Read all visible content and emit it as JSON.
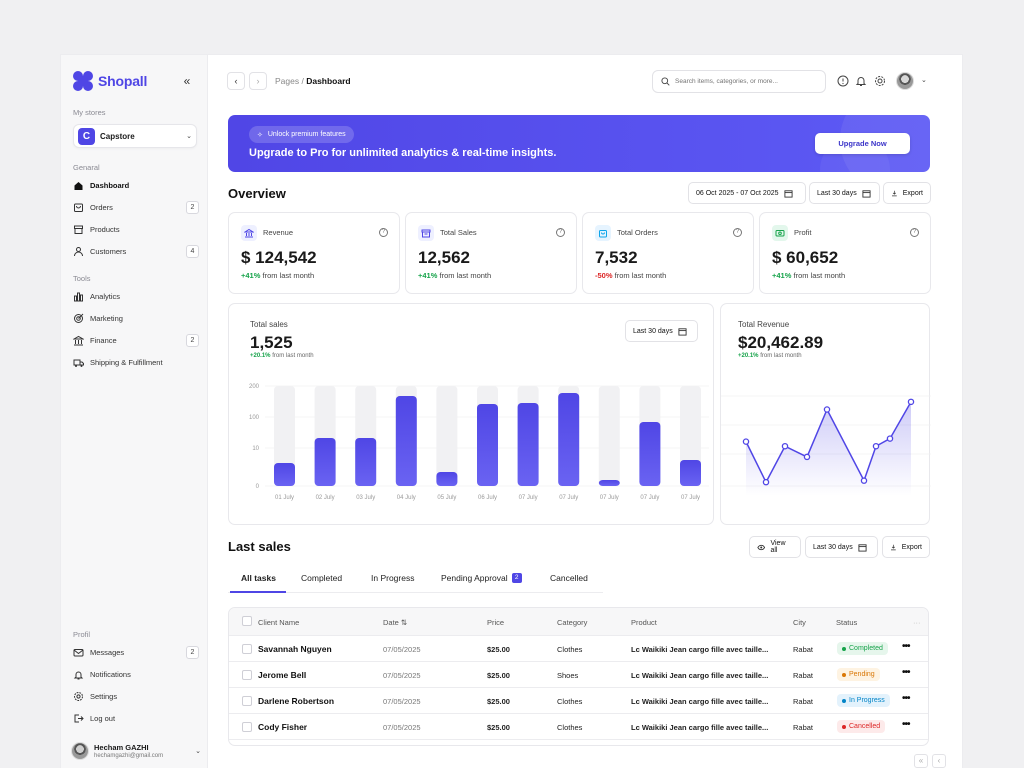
{
  "brand": {
    "name": "Shopall"
  },
  "sidebar": {
    "stores_label": "My stores",
    "store": {
      "initial": "C",
      "name": "Capstore"
    },
    "general_label": "Genaral",
    "general": [
      {
        "label": "Dashboard",
        "badge": ""
      },
      {
        "label": "Orders",
        "badge": "2"
      },
      {
        "label": "Products",
        "badge": ""
      },
      {
        "label": "Customers",
        "badge": "4"
      }
    ],
    "tools_label": "Tools",
    "tools": [
      {
        "label": "Analytics",
        "badge": ""
      },
      {
        "label": "Marketing",
        "badge": ""
      },
      {
        "label": "Finance",
        "badge": "2"
      },
      {
        "label": "Shipping & Fulfillment",
        "badge": ""
      }
    ],
    "profil_label": "Profil",
    "profil": [
      {
        "label": "Messages",
        "badge": "2"
      },
      {
        "label": "Notifications",
        "badge": ""
      },
      {
        "label": "Settings",
        "badge": ""
      },
      {
        "label": "Log out",
        "badge": ""
      }
    ],
    "user": {
      "name": "Hecham GAZHI",
      "email": "hechamgazhi@gmail.com"
    }
  },
  "topbar": {
    "crumb_parent": "Pages /",
    "crumb_current": "Dashboard",
    "search_placeholder": "Search items, categories, or more..."
  },
  "banner": {
    "pill": "Unlock premium features",
    "title": "Upgrade to Pro for unlimited analytics & real-time insights.",
    "button": "Upgrade Now"
  },
  "overview": {
    "title": "Overview",
    "date_range": "06 Oct 2025 - 07 Oct 2025",
    "period": "Last 30 days",
    "export": "Export",
    "cards": [
      {
        "label": "Revenue",
        "value": "$ 124,542",
        "change": "+41%",
        "note": "from last month",
        "trend": "up",
        "color": "#eef0ff",
        "icon_color": "#4f46e5"
      },
      {
        "label": "Total Sales",
        "value": "12,562",
        "change": "+41%",
        "note": "from last month",
        "trend": "up",
        "color": "#eef0ff",
        "icon_color": "#4f46e5"
      },
      {
        "label": "Total Orders",
        "value": "7,532",
        "change": "-50%",
        "note": "from last month",
        "trend": "down",
        "color": "#e6f4ff",
        "icon_color": "#0ea5e9"
      },
      {
        "label": "Profit",
        "value": "$ 60,652",
        "change": "+41%",
        "note": "from last month",
        "trend": "up",
        "color": "#e3f7ec",
        "icon_color": "#16a34a"
      }
    ]
  },
  "sales_panel": {
    "title": "Total sales",
    "value": "1,525",
    "change": "+20.1%",
    "note": "from last month",
    "period": "Last 30 days"
  },
  "revenue_panel": {
    "title": "Total Revenue",
    "value": "$20,462.89",
    "change": "+20.1%",
    "note": "from last month"
  },
  "chart_data": [
    {
      "type": "bar",
      "categories": [
        "01 July",
        "02 July",
        "03 July",
        "04 July",
        "05 July",
        "06 July",
        "07 July",
        "07 July",
        "07 July",
        "07 July",
        "07 July"
      ],
      "yticks": [
        "200",
        "100",
        "10",
        "0"
      ],
      "values": [
        0.23,
        0.48,
        0.48,
        0.9,
        0.14,
        0.82,
        0.83,
        0.93,
        0.06,
        0.64,
        0.26
      ],
      "color": "#4f46e5"
    },
    {
      "type": "line",
      "values": [
        0.58,
        0.05,
        0.52,
        0.38,
        1.0,
        0.07,
        0.52,
        0.62,
        1.1
      ],
      "color": "#5046e6"
    }
  ],
  "last_sales": {
    "title": "Last sales",
    "view_all": "View all",
    "period": "Last 30 days",
    "export": "Export",
    "tabs": [
      {
        "label": "All tasks",
        "badge": ""
      },
      {
        "label": "Completed",
        "badge": ""
      },
      {
        "label": "In Progress",
        "badge": ""
      },
      {
        "label": "Pending Approval",
        "badge": "2"
      },
      {
        "label": "Cancelled",
        "badge": ""
      }
    ],
    "columns": [
      "Client Name",
      "Date ⇅",
      "Price",
      "Category",
      "Product",
      "City",
      "Status"
    ],
    "rows": [
      {
        "name": "Savannah Nguyen",
        "date": "07/05/2025",
        "price": "$25.00",
        "category": "Clothes",
        "product": "Lc Waikiki Jean cargo fille avec taille...",
        "city": "Rabat",
        "status": "Completed",
        "status_color": "#16a34a",
        "status_bg": "#e6f6ec"
      },
      {
        "name": "Jerome Bell",
        "date": "07/05/2025",
        "price": "$25.00",
        "category": "Shoes",
        "product": "Lc Waikiki Jean cargo fille avec taille...",
        "city": "Rabat",
        "status": "Pending",
        "status_color": "#d97706",
        "status_bg": "#fef3e2"
      },
      {
        "name": "Darlene Robertson",
        "date": "07/05/2025",
        "price": "$25.00",
        "category": "Clothes",
        "product": "Lc Waikiki Jean cargo fille avec taille...",
        "city": "Rabat",
        "status": "In Progress",
        "status_color": "#0284c7",
        "status_bg": "#e3f2fc"
      },
      {
        "name": "Cody Fisher",
        "date": "07/05/2025",
        "price": "$25.00",
        "category": "Clothes",
        "product": "Lc Waikiki Jean cargo fille avec taille...",
        "city": "Rabat",
        "status": "Cancelled",
        "status_color": "#dc2626",
        "status_bg": "#fdeaea"
      }
    ]
  }
}
